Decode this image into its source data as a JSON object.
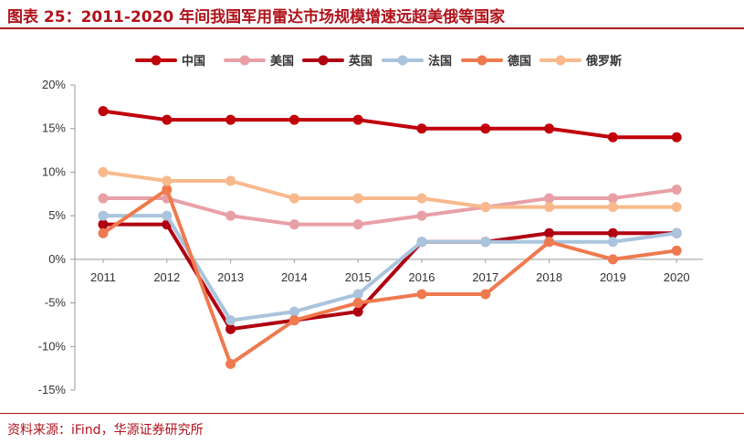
{
  "title": "图表 25：2011-2020 年间我国军用雷达市场规模增速远超美俄等国家",
  "source": "资料来源：iFind，华源证券研究所",
  "chart_data": {
    "type": "line",
    "x": [
      "2011",
      "2012",
      "2013",
      "2014",
      "2015",
      "2016",
      "2017",
      "2018",
      "2019",
      "2020"
    ],
    "ylim": [
      -15,
      20
    ],
    "yticks": [
      -15,
      -10,
      -5,
      0,
      5,
      10,
      15,
      20
    ],
    "ytick_labels": [
      "-15%",
      "-10%",
      "-5%",
      "0%",
      "5%",
      "10%",
      "15%",
      "20%"
    ],
    "xlabel": "",
    "ylabel": "",
    "grid": false,
    "legend": "top",
    "series": [
      {
        "name": "中国",
        "color": "#c0000a",
        "values": [
          17,
          16,
          16,
          16,
          16,
          15,
          15,
          15,
          14,
          14
        ]
      },
      {
        "name": "美国",
        "color": "#e8a0a6",
        "values": [
          7,
          7,
          5,
          4,
          4,
          5,
          6,
          7,
          7,
          8
        ]
      },
      {
        "name": "英国",
        "color": "#b00010",
        "values": [
          4,
          4,
          -8,
          -7,
          -6,
          2,
          2,
          3,
          3,
          3
        ]
      },
      {
        "name": "法国",
        "color": "#a9c4dc",
        "values": [
          5,
          5,
          -7,
          -6,
          -4,
          2,
          2,
          2,
          2,
          3
        ]
      },
      {
        "name": "德国",
        "color": "#ef7a4f",
        "values": [
          3,
          8,
          -12,
          -7,
          -5,
          -4,
          -4,
          2,
          0,
          1
        ]
      },
      {
        "name": "俄罗斯",
        "color": "#f8b98c",
        "values": [
          10,
          9,
          9,
          7,
          7,
          7,
          6,
          6,
          6,
          6
        ]
      }
    ]
  }
}
